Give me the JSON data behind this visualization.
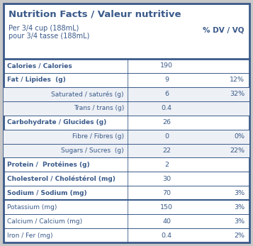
{
  "title": "Nutrition Facts / Valeur nutritive",
  "serving_line1": "Per 3/4 cup (188mL)",
  "serving_line2": "pour 3/4 tasse (188mL)",
  "dv_header": "% DV / VQ",
  "text_color": "#3a5a8a",
  "bg_color": "#ffffff",
  "border_color": "#3a5a8a",
  "alt_bg": "#edf0f5",
  "outer_bg": "#c8c8c8",
  "rows": [
    {
      "label": "Calories / Calories",
      "indent": false,
      "bold": true,
      "value": "190",
      "dv": "",
      "thick_top": false
    },
    {
      "label": "Fat / Lipides  (g)",
      "indent": false,
      "bold": true,
      "value": "9",
      "dv": "12%",
      "thick_top": false
    },
    {
      "label": "Saturated / saturés (g)",
      "indent": true,
      "bold": false,
      "value": "6",
      "dv": "32%",
      "thick_top": false
    },
    {
      "label": "Trans / trans (g)",
      "indent": true,
      "bold": false,
      "value": "0.4",
      "dv": "",
      "thick_top": false
    },
    {
      "label": "Carbohydrate / Glucides (g)",
      "indent": false,
      "bold": true,
      "value": "26",
      "dv": "",
      "thick_top": false
    },
    {
      "label": "Fibre / Fibres (g)",
      "indent": true,
      "bold": false,
      "value": "0",
      "dv": "0%",
      "thick_top": false
    },
    {
      "label": "Sugars / Sucres  (g)",
      "indent": true,
      "bold": false,
      "value": "22",
      "dv": "22%",
      "thick_top": false
    },
    {
      "label": "Protein /  Protéines (g)",
      "indent": false,
      "bold": true,
      "value": "2",
      "dv": "",
      "thick_top": false
    },
    {
      "label": "Cholesterol / Choléstérol (mg)",
      "indent": false,
      "bold": true,
      "value": "30",
      "dv": "",
      "thick_top": false
    },
    {
      "label": "Sodium / Sodium (mg)",
      "indent": false,
      "bold": true,
      "value": "70",
      "dv": "3%",
      "thick_top": false
    },
    {
      "label": "Potassium (mg)",
      "indent": false,
      "bold": false,
      "value": "150",
      "dv": "3%",
      "thick_top": true
    },
    {
      "label": "Calcium / Calcium (mg)",
      "indent": false,
      "bold": false,
      "value": "40",
      "dv": "3%",
      "thick_top": false
    },
    {
      "label": "Iron / Fer (mg)",
      "indent": false,
      "bold": false,
      "value": "0.4",
      "dv": "2%",
      "thick_top": false
    }
  ]
}
